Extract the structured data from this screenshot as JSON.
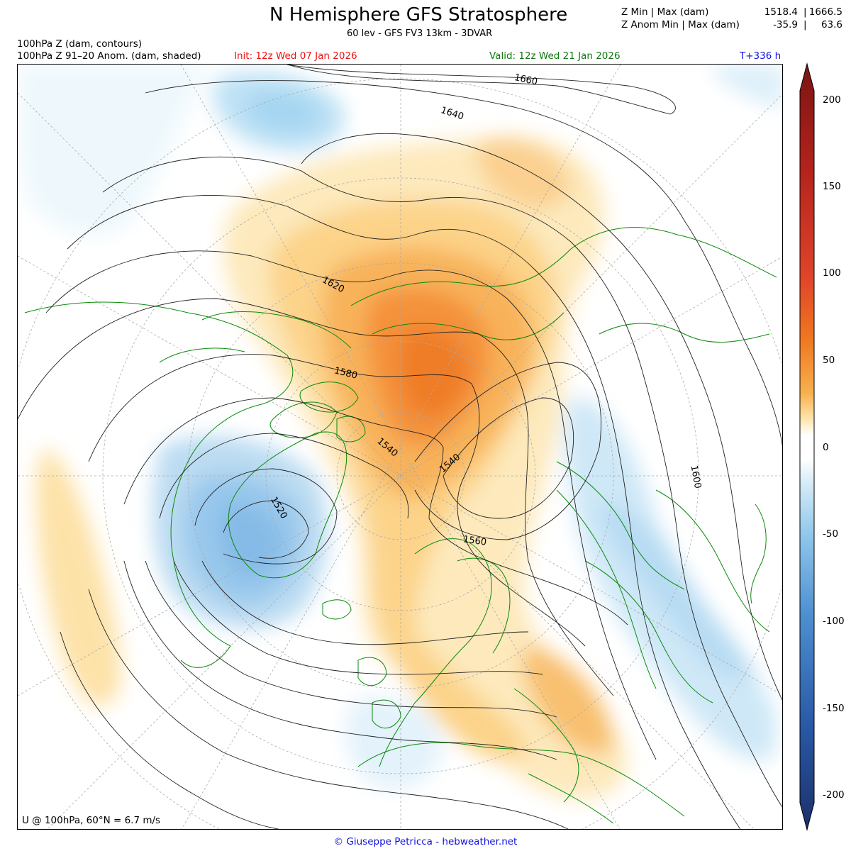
{
  "header": {
    "title": "N Hemisphere GFS Stratosphere",
    "subtitle": "60 lev - GFS FV3 13km - 3DVAR",
    "stats": [
      {
        "label": "Z Min | Max (dam)",
        "min": "1518.4",
        "sep": "|",
        "max": "1666.5"
      },
      {
        "label": "Z Anom Min | Max (dam)",
        "min": "-35.9",
        "sep": "|",
        "max": "63.6"
      }
    ],
    "legend_lines": [
      "100hPa Z (dam, contours)",
      "100hPa Z 91–20 Anom. (dam, shaded)"
    ],
    "init": "Init: 12z Wed 07 Jan 2026",
    "valid": "Valid: 12z Wed 21 Jan 2026",
    "lead": "T+336 h"
  },
  "map": {
    "projection": "north-polar-stereographic",
    "contour_labels": [
      "1660",
      "1640",
      "1620",
      "1580",
      "1540",
      "1540",
      "1520",
      "1560",
      "1600"
    ],
    "wind_note": "U @ 100hPa, 60°N =  6.7 m/s",
    "colors": {
      "coast": "#0a8a0a",
      "contour": "#222222",
      "grid": "#aaaaaa"
    }
  },
  "colorbar": {
    "ticks": [
      "200",
      "150",
      "100",
      "50",
      "0",
      "-50",
      "-100",
      "-150",
      "-200"
    ],
    "colors": {
      "max": "#7a1414",
      "warm": "#f07820",
      "light": "#fde0a0",
      "zero": "#ffffff",
      "cool": "#8cc4ea",
      "min": "#1c2f6a"
    }
  },
  "credit": "© Giuseppe Petricca - hebweather.net"
}
